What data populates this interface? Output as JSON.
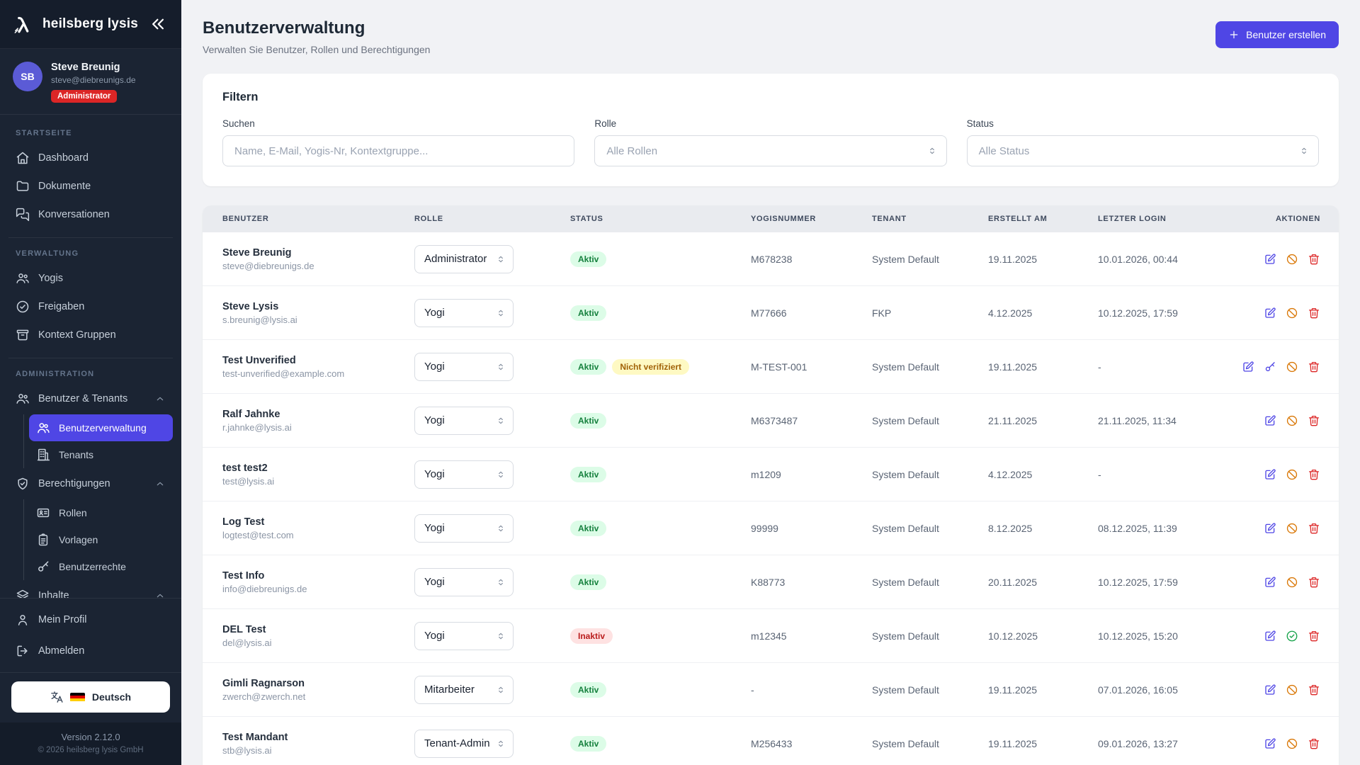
{
  "app": {
    "brand": "heilsberg lysis",
    "language": "Deutsch",
    "version": "Version 2.12.0",
    "copyright": "© 2026 heilsberg lysis GmbH"
  },
  "user": {
    "initials": "SB",
    "name": "Steve Breunig",
    "email": "steve@diebreunigs.de",
    "role_badge": "Administrator"
  },
  "sidebar": {
    "sections": [
      {
        "label": "Startseite",
        "items": [
          {
            "icon": "home",
            "label": "Dashboard"
          },
          {
            "icon": "folder",
            "label": "Dokumente"
          },
          {
            "icon": "chat",
            "label": "Konversationen"
          }
        ]
      },
      {
        "label": "Verwaltung",
        "items": [
          {
            "icon": "users-group",
            "label": "Yogis"
          },
          {
            "icon": "check-circle",
            "label": "Freigaben"
          },
          {
            "icon": "archive",
            "label": "Kontext Gruppen"
          }
        ]
      },
      {
        "label": "Administration",
        "items": [
          {
            "icon": "users-group",
            "label": "Benutzer & Tenants",
            "chevron": "up",
            "children": [
              {
                "icon": "users",
                "label": "Benutzerverwaltung",
                "active": true
              },
              {
                "icon": "building",
                "label": "Tenants"
              }
            ]
          },
          {
            "icon": "shield-check",
            "label": "Berechtigungen",
            "chevron": "up",
            "children": [
              {
                "icon": "id-card",
                "label": "Rollen"
              },
              {
                "icon": "clipboard",
                "label": "Vorlagen"
              },
              {
                "icon": "key",
                "label": "Benutzerrechte"
              }
            ]
          },
          {
            "icon": "layers",
            "label": "Inhalte",
            "chevron": "up"
          }
        ]
      }
    ],
    "footer_items": [
      {
        "icon": "profile",
        "label": "Mein Profil"
      },
      {
        "icon": "logout",
        "label": "Abmelden"
      }
    ]
  },
  "header": {
    "title": "Benutzerverwaltung",
    "subtitle": "Verwalten Sie Benutzer, Rollen und Berechtigungen",
    "create_button": "Benutzer erstellen"
  },
  "filters": {
    "title": "Filtern",
    "search_label": "Suchen",
    "search_placeholder": "Name, E-Mail, Yogis-Nr, Kontextgruppe...",
    "role_label": "Rolle",
    "role_value": "Alle Rollen",
    "status_label": "Status",
    "status_value": "Alle Status"
  },
  "table": {
    "columns": [
      "Benutzer",
      "Rolle",
      "Status",
      "Yogisnummer",
      "Tenant",
      "Erstellt am",
      "Letzter Login",
      "Aktionen"
    ],
    "rows": [
      {
        "name": "Steve Breunig",
        "email": "steve@diebreunigs.de",
        "role": "Administrator",
        "badges": [
          {
            "label": "Aktiv",
            "type": "active"
          }
        ],
        "yogisnummer": "M678238",
        "tenant": "System Default",
        "created": "19.11.2025",
        "last_login": "10.01.2026, 00:44",
        "actions": [
          "edit",
          "ban",
          "delete"
        ]
      },
      {
        "name": "Steve Lysis",
        "email": "s.breunig@lysis.ai",
        "role": "Yogi",
        "badges": [
          {
            "label": "Aktiv",
            "type": "active"
          }
        ],
        "yogisnummer": "M77666",
        "tenant": "FKP",
        "created": "4.12.2025",
        "last_login": "10.12.2025, 17:59",
        "actions": [
          "edit",
          "ban",
          "delete"
        ]
      },
      {
        "name": "Test Unverified",
        "email": "test-unverified@example.com",
        "role": "Yogi",
        "badges": [
          {
            "label": "Aktiv",
            "type": "active"
          },
          {
            "label": "Nicht verifiziert",
            "type": "warning"
          }
        ],
        "yogisnummer": "M-TEST-001",
        "tenant": "System Default",
        "created": "19.11.2025",
        "last_login": "-",
        "actions": [
          "edit",
          "key",
          "ban",
          "delete"
        ]
      },
      {
        "name": "Ralf Jahnke",
        "email": "r.jahnke@lysis.ai",
        "role": "Yogi",
        "badges": [
          {
            "label": "Aktiv",
            "type": "active"
          }
        ],
        "yogisnummer": "M6373487",
        "tenant": "System Default",
        "created": "21.11.2025",
        "last_login": "21.11.2025, 11:34",
        "actions": [
          "edit",
          "ban",
          "delete"
        ]
      },
      {
        "name": "test test2",
        "email": "test@lysis.ai",
        "role": "Yogi",
        "badges": [
          {
            "label": "Aktiv",
            "type": "active"
          }
        ],
        "yogisnummer": "m1209",
        "tenant": "System Default",
        "created": "4.12.2025",
        "last_login": "-",
        "actions": [
          "edit",
          "ban",
          "delete"
        ]
      },
      {
        "name": "Log Test",
        "email": "logtest@test.com",
        "role": "Yogi",
        "badges": [
          {
            "label": "Aktiv",
            "type": "active"
          }
        ],
        "yogisnummer": "99999",
        "tenant": "System Default",
        "created": "8.12.2025",
        "last_login": "08.12.2025, 11:39",
        "actions": [
          "edit",
          "ban",
          "delete"
        ]
      },
      {
        "name": "Test Info",
        "email": "info@diebreunigs.de",
        "role": "Yogi",
        "badges": [
          {
            "label": "Aktiv",
            "type": "active"
          }
        ],
        "yogisnummer": "K88773",
        "tenant": "System Default",
        "created": "20.11.2025",
        "last_login": "10.12.2025, 17:59",
        "actions": [
          "edit",
          "ban",
          "delete"
        ]
      },
      {
        "name": "DEL Test",
        "email": "del@lysis.ai",
        "role": "Yogi",
        "badges": [
          {
            "label": "Inaktiv",
            "type": "inactive"
          }
        ],
        "yogisnummer": "m12345",
        "tenant": "System Default",
        "created": "10.12.2025",
        "last_login": "10.12.2025, 15:20",
        "actions": [
          "edit",
          "activate",
          "delete"
        ]
      },
      {
        "name": "Gimli Ragnarson",
        "email": "zwerch@zwerch.net",
        "role": "Mitarbeiter",
        "badges": [
          {
            "label": "Aktiv",
            "type": "active"
          }
        ],
        "yogisnummer": "-",
        "tenant": "System Default",
        "created": "19.11.2025",
        "last_login": "07.01.2026, 16:05",
        "actions": [
          "edit",
          "ban",
          "delete"
        ]
      },
      {
        "name": "Test Mandant",
        "email": "stb@lysis.ai",
        "role": "Tenant-Admin",
        "badges": [
          {
            "label": "Aktiv",
            "type": "active"
          }
        ],
        "yogisnummer": "M256433",
        "tenant": "System Default",
        "created": "19.11.2025",
        "last_login": "09.01.2026, 13:27",
        "actions": [
          "edit",
          "ban",
          "delete"
        ]
      }
    ]
  },
  "colors": {
    "accent": "#4f46e5",
    "sidebar_bg": "#1b2433",
    "avatar_bg": "#5b5bd6",
    "admin_badge": "#dc2626",
    "status_active_bg": "#dcfce7",
    "status_active_text": "#15803d",
    "status_inactive_bg": "#fee2e2",
    "status_inactive_text": "#b91c1c",
    "status_warning_bg": "#fef9c3",
    "status_warning_text": "#a16207",
    "action_edit": "#4f46e5",
    "action_ban": "#d97706",
    "action_activate": "#16a34a",
    "action_delete": "#dc2626"
  }
}
